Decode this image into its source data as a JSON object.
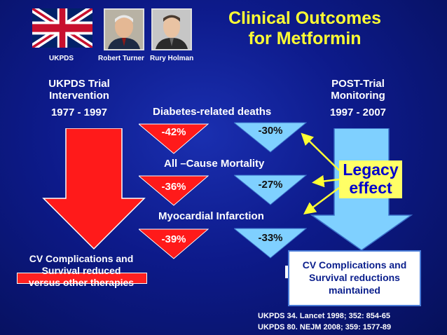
{
  "title": {
    "line1": "Clinical Outcomes",
    "line2": "for Metformin"
  },
  "captions": {
    "flag": "UKPDS",
    "person1": "Robert Turner",
    "person2": "Rury Holman"
  },
  "left_section": {
    "line1": "UKPDS Trial",
    "line2": "Intervention",
    "years": "1977 - 1997"
  },
  "right_section": {
    "line1": "POST-Trial",
    "line2": "Monitoring",
    "years": "1997 - 2007"
  },
  "outcomes": [
    {
      "label": "Diabetes-related deaths",
      "trial": "-42%",
      "post": "-30%"
    },
    {
      "label": "All –Cause Mortality",
      "trial": "-36%",
      "post": "-27%"
    },
    {
      "label": "Myocardial Infarction",
      "trial": "-39%",
      "post": "-33%"
    }
  ],
  "legacy": {
    "line1": "Legacy",
    "line2": "effect"
  },
  "left_outcome": {
    "line1": "CV Complications and",
    "line2": "Survival reduced",
    "line3": "versus other therapies"
  },
  "right_outcome": {
    "line1": "CV Complications and",
    "line2": "Survival reductions",
    "line3": "maintained"
  },
  "references": {
    "ref1": "UKPDS 34.  Lancet 1998; 352: 854-65",
    "ref2": "UKPDS 80.  NEJM 2008;  359:  1577-89"
  },
  "colors": {
    "title": "#ffff33",
    "red_arrow": "#ff1a1a",
    "blue_arrow": "#7fd0ff",
    "legacy_bg": "#ffff66",
    "legacy_text": "#0000cc"
  }
}
